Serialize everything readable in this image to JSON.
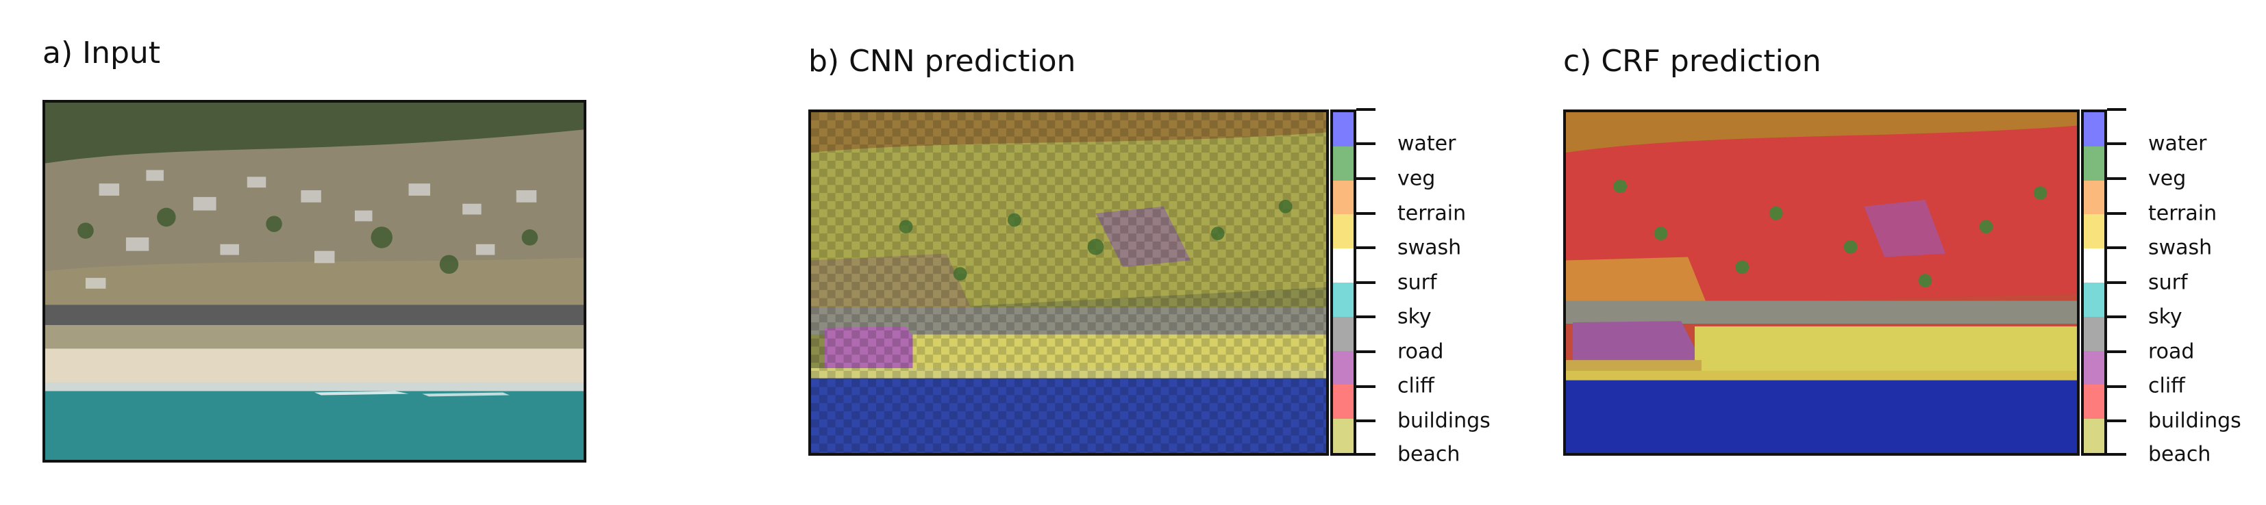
{
  "panels": {
    "input": {
      "title": "a) Input"
    },
    "cnn": {
      "title": "b) CNN prediction"
    },
    "crf": {
      "title": "c) CRF prediction"
    }
  },
  "legend": {
    "classes": [
      {
        "label": "beach",
        "color": "#d8d884"
      },
      {
        "label": "buildings",
        "color": "#ff7c7c"
      },
      {
        "label": "cliff",
        "color": "#c47ec4"
      },
      {
        "label": "road",
        "color": "#a8a8a8"
      },
      {
        "label": "sky",
        "color": "#79d9d9"
      },
      {
        "label": "surf",
        "color": "#ffffff"
      },
      {
        "label": "swash",
        "color": "#f8e27c"
      },
      {
        "label": "terrain",
        "color": "#fbb97c"
      },
      {
        "label": "veg",
        "color": "#7dbb7d"
      },
      {
        "label": "water",
        "color": "#7c7cff"
      }
    ]
  }
}
